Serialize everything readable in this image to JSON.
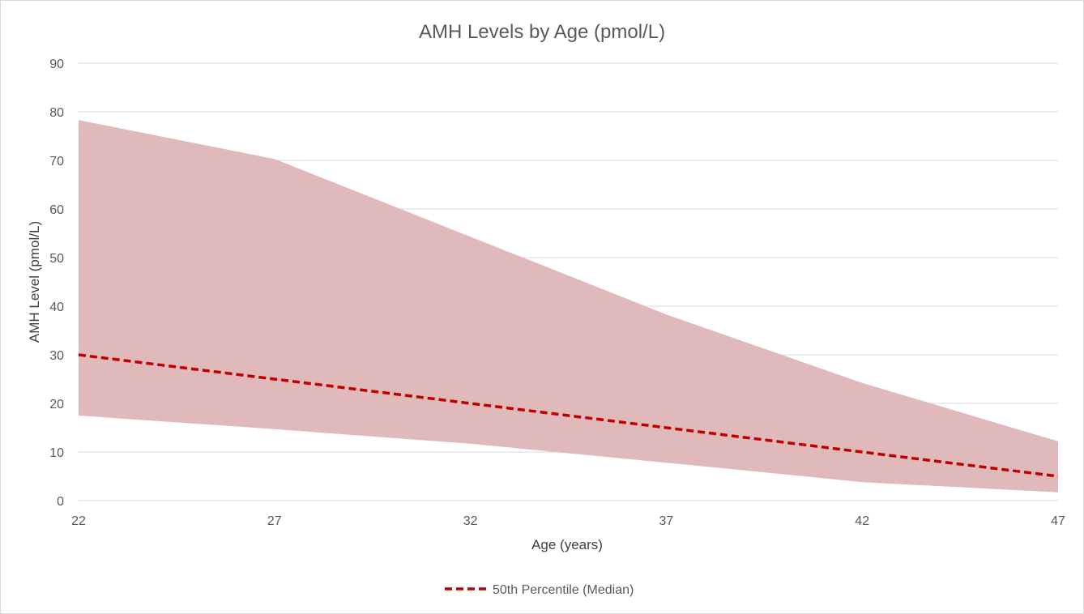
{
  "chart_data": {
    "type": "area",
    "title": "AMH Levels by Age (pmol/L)",
    "xlabel": "Age (years)",
    "ylabel": "AMH Level (pmol/L)",
    "x": [
      22,
      27,
      32,
      37,
      42,
      47
    ],
    "xlim": [
      22,
      47
    ],
    "ylim": [
      0,
      90
    ],
    "y_ticks": [
      0,
      10,
      20,
      30,
      40,
      50,
      60,
      70,
      80,
      90
    ],
    "x_ticks": [
      22,
      27,
      32,
      37,
      42,
      47
    ],
    "grid": "horizontal",
    "legend_position": "bottom",
    "series": [
      {
        "role": "band_lower",
        "values": [
          17.5,
          14.7,
          11.7,
          7.8,
          3.8,
          1.7
        ],
        "color": "#e0b9ba"
      },
      {
        "role": "band_upper",
        "values": [
          78.3,
          70.3,
          54.3,
          38.3,
          24.2,
          12.2
        ],
        "color": "#e0b9ba"
      },
      {
        "name": "50th Percentile (Median)",
        "role": "line",
        "style": "dashed",
        "values": [
          30,
          25,
          20,
          15,
          10,
          5
        ],
        "color": "#c00000"
      }
    ]
  }
}
